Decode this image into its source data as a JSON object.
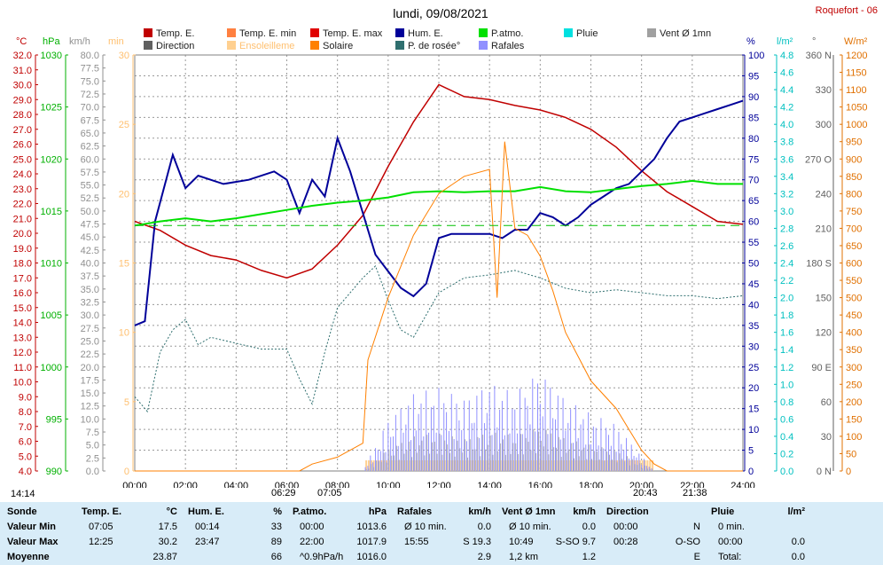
{
  "header": {
    "title": "lundi, 09/08/2021",
    "station": "Roquefort - 06"
  },
  "legend": [
    {
      "label": "Temp. E.",
      "color": "#c00000"
    },
    {
      "label": "Temp. E. min",
      "color": "#ff8040"
    },
    {
      "label": "Temp. E. max",
      "color": "#e00000"
    },
    {
      "label": "Hum. E.",
      "color": "#000099"
    },
    {
      "label": "P.atmo.",
      "color": "#00e000"
    },
    {
      "label": "Pluie",
      "color": "#00e0e0"
    },
    {
      "label": "Vent Ø 1mn",
      "color": "#a0a0a0"
    },
    {
      "label": "Direction",
      "color": "#606060"
    },
    {
      "label": "Ensoleilleme",
      "color": "#ffd090"
    },
    {
      "label": "Solaire",
      "color": "#ff8000"
    },
    {
      "label": "P. de rosée°",
      "color": "#2f6f6f"
    },
    {
      "label": "Rafales",
      "color": "#9090ff"
    }
  ],
  "axis_units": {
    "temp": "°C",
    "press": "hPa",
    "wind": "km/h",
    "sun": "min",
    "hum": "%",
    "rain": "l/m²",
    "dir": "°",
    "solar": "W/m²"
  },
  "chart_data": {
    "type": "line",
    "title": "lundi, 09/08/2021",
    "x_ticks": [
      "00:00",
      "02:00",
      "04:00",
      "06:00",
      "08:00",
      "10:00",
      "12:00",
      "14:00",
      "16:00",
      "18:00",
      "20:00",
      "22:00",
      "24:00"
    ],
    "axes": {
      "temp_c": {
        "range": [
          4.0,
          32.0
        ],
        "step": 1.0
      },
      "pressure_hpa": {
        "range": [
          990,
          1030
        ],
        "step": 5
      },
      "wind_kmh": {
        "range": [
          0,
          80
        ],
        "step": 2.5
      },
      "sunshine_min": {
        "range": [
          0,
          30
        ],
        "step": 5
      },
      "humidity_pct": {
        "range": [
          0,
          100
        ],
        "step": 5
      },
      "rain_lm2": {
        "range": [
          0,
          4.8
        ],
        "step": 0.2
      },
      "direction_deg": {
        "ticks": [
          "0 N",
          "30",
          "60",
          "90 E",
          "120",
          "150",
          "180 S",
          "210",
          "240",
          "270 O",
          "300",
          "330",
          "360 N"
        ]
      },
      "solar_wm2": {
        "range": [
          0,
          1200
        ],
        "step": 50
      }
    },
    "series": [
      {
        "name": "Temp. E.",
        "unit": "°C",
        "points": [
          [
            0,
            20.8
          ],
          [
            1,
            20.2
          ],
          [
            2,
            19.2
          ],
          [
            3,
            18.5
          ],
          [
            4,
            18.2
          ],
          [
            5,
            17.5
          ],
          [
            6,
            17.0
          ],
          [
            7,
            17.6
          ],
          [
            8,
            19.2
          ],
          [
            9,
            21.2
          ],
          [
            10,
            24.5
          ],
          [
            11,
            27.5
          ],
          [
            12,
            30.0
          ],
          [
            13,
            29.2
          ],
          [
            14,
            29.0
          ],
          [
            15,
            28.6
          ],
          [
            16,
            28.3
          ],
          [
            17,
            27.8
          ],
          [
            18,
            27.0
          ],
          [
            19,
            25.8
          ],
          [
            20,
            24.2
          ],
          [
            21,
            22.8
          ],
          [
            22,
            21.8
          ],
          [
            23,
            20.8
          ],
          [
            24,
            20.6
          ]
        ]
      },
      {
        "name": "Hum. E.",
        "unit": "%",
        "points": [
          [
            0,
            35
          ],
          [
            0.4,
            36
          ],
          [
            0.8,
            60
          ],
          [
            1.5,
            76
          ],
          [
            2,
            68
          ],
          [
            2.5,
            71
          ],
          [
            3.5,
            69
          ],
          [
            4.5,
            70
          ],
          [
            5.5,
            72
          ],
          [
            6,
            70
          ],
          [
            6.5,
            62
          ],
          [
            7,
            70
          ],
          [
            7.5,
            66
          ],
          [
            8,
            80
          ],
          [
            8.5,
            72
          ],
          [
            9,
            62
          ],
          [
            9.5,
            52
          ],
          [
            10,
            48
          ],
          [
            10.5,
            44
          ],
          [
            11,
            42
          ],
          [
            11.5,
            45
          ],
          [
            12,
            56
          ],
          [
            12.5,
            57
          ],
          [
            13,
            57
          ],
          [
            14,
            57
          ],
          [
            14.5,
            56
          ],
          [
            15,
            58
          ],
          [
            15.5,
            58
          ],
          [
            16,
            62
          ],
          [
            16.5,
            61
          ],
          [
            17,
            59
          ],
          [
            17.5,
            61
          ],
          [
            18,
            64
          ],
          [
            18.5,
            66
          ],
          [
            19,
            68
          ],
          [
            19.5,
            69
          ],
          [
            20,
            72
          ],
          [
            20.5,
            75
          ],
          [
            21,
            80
          ],
          [
            21.5,
            84
          ],
          [
            22,
            85
          ],
          [
            22.5,
            86
          ],
          [
            23,
            87
          ],
          [
            23.5,
            88
          ],
          [
            24,
            89
          ]
        ]
      },
      {
        "name": "P.atmo.",
        "unit": "hPa",
        "points": [
          [
            0,
            1013.6
          ],
          [
            1,
            1014.0
          ],
          [
            2,
            1014.3
          ],
          [
            3,
            1014.0
          ],
          [
            4,
            1014.3
          ],
          [
            5,
            1014.7
          ],
          [
            6,
            1015.1
          ],
          [
            7,
            1015.5
          ],
          [
            8,
            1015.8
          ],
          [
            9,
            1016.0
          ],
          [
            10,
            1016.3
          ],
          [
            11,
            1016.8
          ],
          [
            12,
            1016.9
          ],
          [
            13,
            1016.8
          ],
          [
            14,
            1016.9
          ],
          [
            15,
            1016.9
          ],
          [
            16,
            1017.3
          ],
          [
            17,
            1016.9
          ],
          [
            18,
            1016.8
          ],
          [
            19,
            1017.1
          ],
          [
            20,
            1017.4
          ],
          [
            21,
            1017.6
          ],
          [
            22,
            1017.9
          ],
          [
            23,
            1017.6
          ],
          [
            24,
            1017.6
          ]
        ]
      },
      {
        "name": "P. de rosée°",
        "unit": "°C",
        "points": [
          [
            0,
            9.0
          ],
          [
            0.5,
            8.0
          ],
          [
            1,
            12.0
          ],
          [
            1.5,
            13.5
          ],
          [
            2,
            14.2
          ],
          [
            2.5,
            12.5
          ],
          [
            3,
            13.0
          ],
          [
            4,
            12.6
          ],
          [
            5,
            12.2
          ],
          [
            6,
            12.2
          ],
          [
            6.5,
            10.2
          ],
          [
            7,
            8.5
          ],
          [
            7.5,
            12.0
          ],
          [
            8,
            15.0
          ],
          [
            8.5,
            16.0
          ],
          [
            9,
            17.0
          ],
          [
            9.5,
            17.8
          ],
          [
            10,
            15.5
          ],
          [
            10.5,
            13.5
          ],
          [
            11,
            13.0
          ],
          [
            11.5,
            14.5
          ],
          [
            12,
            16.0
          ],
          [
            13,
            17.0
          ],
          [
            14,
            17.2
          ],
          [
            15,
            17.5
          ],
          [
            16,
            17.0
          ],
          [
            17,
            16.3
          ],
          [
            18,
            16.0
          ],
          [
            19,
            16.2
          ],
          [
            20,
            16.0
          ],
          [
            21,
            15.8
          ],
          [
            22,
            15.8
          ],
          [
            23,
            15.6
          ],
          [
            24,
            15.8
          ]
        ]
      },
      {
        "name": "Solaire",
        "unit": "W/m²",
        "points": [
          [
            0,
            0
          ],
          [
            6.5,
            0
          ],
          [
            7,
            20
          ],
          [
            8,
            40
          ],
          [
            9,
            80
          ],
          [
            9.2,
            320
          ],
          [
            10,
            500
          ],
          [
            11,
            680
          ],
          [
            12,
            800
          ],
          [
            13,
            850
          ],
          [
            14,
            870
          ],
          [
            14.3,
            500
          ],
          [
            14.6,
            950
          ],
          [
            15,
            700
          ],
          [
            15.5,
            680
          ],
          [
            16,
            620
          ],
          [
            16.5,
            520
          ],
          [
            17,
            400
          ],
          [
            18,
            260
          ],
          [
            19,
            180
          ],
          [
            20,
            60
          ],
          [
            20.5,
            20
          ],
          [
            21,
            0
          ],
          [
            24,
            0
          ]
        ]
      },
      {
        "name": "Rafales",
        "unit": "km/h",
        "points": [
          [
            0,
            0
          ],
          [
            9,
            0
          ],
          [
            10,
            10
          ],
          [
            11,
            15
          ],
          [
            12,
            16
          ],
          [
            13,
            14
          ],
          [
            14,
            17
          ],
          [
            15,
            15
          ],
          [
            16,
            19.3
          ],
          [
            17,
            14
          ],
          [
            18,
            11
          ],
          [
            19,
            9
          ],
          [
            20,
            3
          ],
          [
            20.5,
            0
          ],
          [
            24,
            0
          ]
        ]
      }
    ]
  },
  "sun": {
    "start": "14:14",
    "sunrise": "06:29",
    "sunrise2": "07:05",
    "sunset": "20:43",
    "sunset2": "21:38"
  },
  "footer": {
    "sonde": {
      "title": "Sonde",
      "rows": [
        "Valeur Min",
        "Valeur Max",
        "Moyenne"
      ]
    },
    "temp": {
      "title": "Temp. E.",
      "unit": "°C",
      "rows": [
        [
          "07:05",
          "17.5"
        ],
        [
          "12:25",
          "30.2"
        ],
        [
          "",
          "23.87"
        ]
      ]
    },
    "hum": {
      "title": "Hum. E.",
      "unit": "%",
      "rows": [
        [
          "00:14",
          "33"
        ],
        [
          "23:47",
          "89"
        ],
        [
          "",
          "66"
        ]
      ]
    },
    "press": {
      "title": "P.atmo.",
      "unit": "hPa",
      "rows": [
        [
          "00:00",
          "1013.6"
        ],
        [
          "22:00",
          "1017.9"
        ],
        [
          "^0.9hPa/h",
          "1016.0"
        ]
      ]
    },
    "gust": {
      "title": "Rafales",
      "unit": "km/h",
      "rows": [
        [
          "Ø 10 min.",
          "0.0"
        ],
        [
          "15:55",
          "S 19.3"
        ],
        [
          "",
          "2.9"
        ]
      ]
    },
    "wind": {
      "title": "Vent Ø 1mn",
      "unit": "km/h",
      "rows": [
        [
          "Ø 10 min.",
          "0.0"
        ],
        [
          "10:49",
          "S-SO  9.7"
        ],
        [
          "1,2 km",
          "1.2"
        ]
      ]
    },
    "dir": {
      "title": "Direction",
      "unit": "",
      "rows": [
        [
          "00:00",
          "N"
        ],
        [
          "00:28",
          "O-SO"
        ],
        [
          "",
          "E"
        ]
      ]
    },
    "rain": {
      "title": "Pluie",
      "unit": "l/m²",
      "rows": [
        [
          "0 min.",
          ""
        ],
        [
          "00:00",
          "0.0"
        ],
        [
          "Total:",
          "0.0"
        ]
      ]
    }
  }
}
